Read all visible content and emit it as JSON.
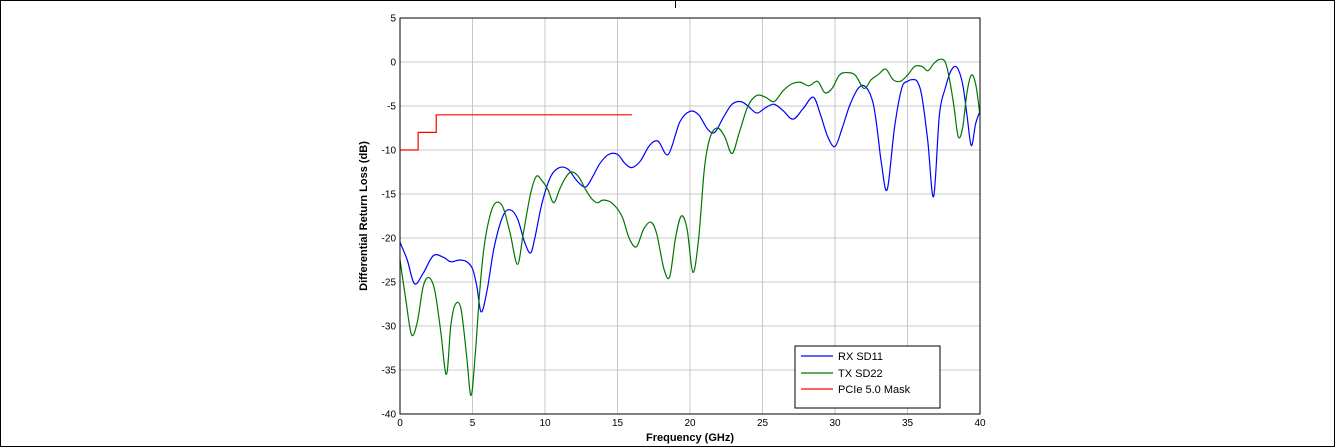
{
  "chart_data": {
    "type": "line",
    "title": "",
    "xlabel": "Frequency (GHz)",
    "ylabel": "Differential Return Loss (dB)",
    "xlim": [
      0,
      40
    ],
    "ylim": [
      -40,
      5
    ],
    "x_ticks": [
      0,
      5,
      10,
      15,
      20,
      25,
      30,
      35,
      40
    ],
    "y_ticks": [
      5,
      0,
      -5,
      -10,
      -15,
      -20,
      -25,
      -30,
      -35,
      -40
    ],
    "grid": true,
    "legend_position": "bottom-right",
    "series": [
      {
        "name": "RX SD11",
        "color": "#0000ff",
        "x": [
          0,
          0.5,
          1.0,
          1.6,
          2.3,
          3.0,
          3.5,
          4.1,
          4.6,
          5.0,
          5.3,
          5.6,
          6.0,
          6.5,
          7.1,
          7.6,
          8.1,
          8.6,
          9.0,
          9.3,
          9.8,
          10.4,
          11.0,
          11.6,
          12.2,
          12.8,
          13.3,
          13.8,
          14.4,
          15.0,
          15.5,
          16.0,
          16.6,
          17.2,
          17.8,
          18.5,
          19.3,
          20.0,
          20.6,
          21.2,
          21.7,
          22.3,
          22.9,
          23.5,
          24.0,
          24.6,
          25.2,
          25.8,
          26.4,
          27.1,
          27.8,
          28.5,
          29.0,
          29.5,
          30.0,
          30.5,
          31.0,
          31.6,
          32.1,
          32.6,
          32.9,
          33.2,
          33.6,
          34.1,
          34.6,
          35.0,
          35.4,
          35.7,
          36.0,
          36.4,
          36.8,
          37.2,
          37.6,
          38.0,
          38.4,
          38.8,
          39.1,
          39.4,
          39.7,
          40.0
        ],
        "y": [
          -20.5,
          -22.5,
          -25.2,
          -24.0,
          -22.0,
          -22.2,
          -22.7,
          -22.5,
          -22.7,
          -23.5,
          -25.5,
          -28.4,
          -26.0,
          -21.0,
          -17.5,
          -16.8,
          -17.8,
          -20.5,
          -21.7,
          -20.0,
          -16.0,
          -13.0,
          -12.0,
          -12.2,
          -13.5,
          -14.2,
          -13.0,
          -11.5,
          -10.5,
          -10.5,
          -11.5,
          -12.0,
          -11.2,
          -9.5,
          -9.0,
          -10.5,
          -6.8,
          -5.6,
          -6.0,
          -7.6,
          -8.0,
          -6.3,
          -4.8,
          -4.5,
          -5.0,
          -5.8,
          -5.2,
          -4.8,
          -5.5,
          -6.5,
          -5.3,
          -4.0,
          -6.0,
          -8.5,
          -9.6,
          -7.5,
          -5.0,
          -3.0,
          -2.8,
          -4.5,
          -7.5,
          -11.5,
          -14.5,
          -7.5,
          -3.0,
          -2.2,
          -2.0,
          -2.3,
          -4.0,
          -9.0,
          -15.3,
          -6.0,
          -3.0,
          -1.0,
          -0.6,
          -2.5,
          -6.0,
          -9.5,
          -7.0,
          -5.6
        ]
      },
      {
        "name": "TX SD22",
        "color": "#007700",
        "x": [
          0,
          0.4,
          0.8,
          1.2,
          1.6,
          2.0,
          2.4,
          2.8,
          3.2,
          3.5,
          3.8,
          4.2,
          4.6,
          4.9,
          5.2,
          5.5,
          5.8,
          6.2,
          6.6,
          7.1,
          7.6,
          8.1,
          8.5,
          9.0,
          9.4,
          9.8,
          10.2,
          10.6,
          11.0,
          11.4,
          11.8,
          12.3,
          12.8,
          13.2,
          13.6,
          14.0,
          14.6,
          15.3,
          15.8,
          16.3,
          16.8,
          17.3,
          17.7,
          18.2,
          18.6,
          19.0,
          19.4,
          19.8,
          20.2,
          20.6,
          21.0,
          21.4,
          21.9,
          22.4,
          22.9,
          23.4,
          24.0,
          24.6,
          25.2,
          25.8,
          26.4,
          27.0,
          27.6,
          28.2,
          28.8,
          29.3,
          29.8,
          30.3,
          30.8,
          31.4,
          32.0,
          32.5,
          33.0,
          33.5,
          34.0,
          34.5,
          35.0,
          35.5,
          36.0,
          36.4,
          36.8,
          37.2,
          37.6,
          37.9,
          38.2,
          38.5,
          38.8,
          39.1,
          39.4,
          39.7,
          40.0
        ],
        "y": [
          -22.5,
          -27.0,
          -31.0,
          -29.5,
          -25.5,
          -24.5,
          -26.0,
          -30.5,
          -35.5,
          -30.0,
          -27.6,
          -28.0,
          -33.5,
          -37.9,
          -33.0,
          -26.0,
          -21.0,
          -17.5,
          -16.0,
          -16.5,
          -19.5,
          -23.0,
          -19.5,
          -15.0,
          -13.0,
          -13.5,
          -14.5,
          -16.0,
          -14.5,
          -13.2,
          -12.5,
          -13.0,
          -14.5,
          -15.5,
          -16.0,
          -15.7,
          -16.0,
          -17.5,
          -20.0,
          -21.0,
          -19.0,
          -18.2,
          -19.5,
          -23.5,
          -24.4,
          -20.0,
          -17.5,
          -19.0,
          -23.9,
          -20.0,
          -12.0,
          -8.5,
          -7.5,
          -8.5,
          -10.4,
          -8.0,
          -5.0,
          -3.8,
          -4.0,
          -4.5,
          -3.3,
          -2.5,
          -2.3,
          -2.7,
          -2.2,
          -3.5,
          -3.0,
          -1.5,
          -1.2,
          -1.5,
          -3.0,
          -2.0,
          -1.4,
          -0.8,
          -2.0,
          -2.2,
          -1.5,
          -0.5,
          -0.5,
          -1.0,
          -0.2,
          0.3,
          0.0,
          -2.0,
          -5.0,
          -8.5,
          -7.5,
          -3.5,
          -1.5,
          -2.5,
          -6.0
        ]
      },
      {
        "name": "PCIe 5.0 Mask",
        "color": "#ff0000",
        "x": [
          0,
          1.25,
          1.25,
          2.5,
          2.5,
          16
        ],
        "y": [
          -10,
          -10,
          -8,
          -8,
          -6,
          -6
        ]
      }
    ]
  }
}
